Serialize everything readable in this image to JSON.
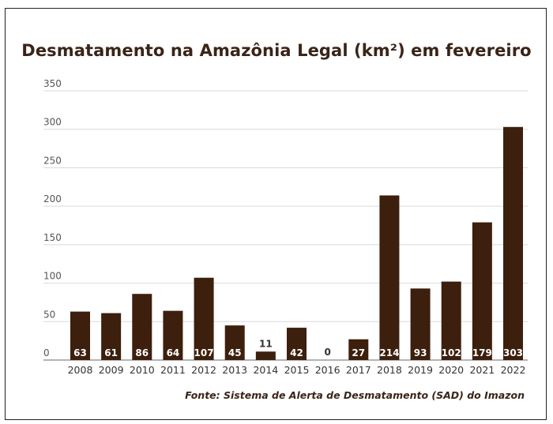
{
  "chart_data": {
    "type": "bar",
    "title": "Desmatamento na Amazônia Legal (km²) em fevereiro",
    "source": "Fonte: Sistema de Alerta de Desmatamento (SAD) do Imazon",
    "xlabel": "",
    "ylabel": "",
    "ylim": [
      0,
      350
    ],
    "yticks": [
      0,
      50,
      100,
      150,
      200,
      250,
      300,
      350
    ],
    "grid": true,
    "categories": [
      "2008",
      "2009",
      "2010",
      "2011",
      "2012",
      "2013",
      "2014",
      "2015",
      "2016",
      "2017",
      "2018",
      "2019",
      "2020",
      "2021",
      "2022"
    ],
    "values": [
      63,
      61,
      86,
      64,
      107,
      45,
      11,
      42,
      0,
      27,
      214,
      93,
      102,
      179,
      303
    ],
    "bar_color": "#3d1f0d",
    "label_color_inside": "#ffffff",
    "label_color_outside": "#333333",
    "gridline_color": "#d9d9d9"
  }
}
